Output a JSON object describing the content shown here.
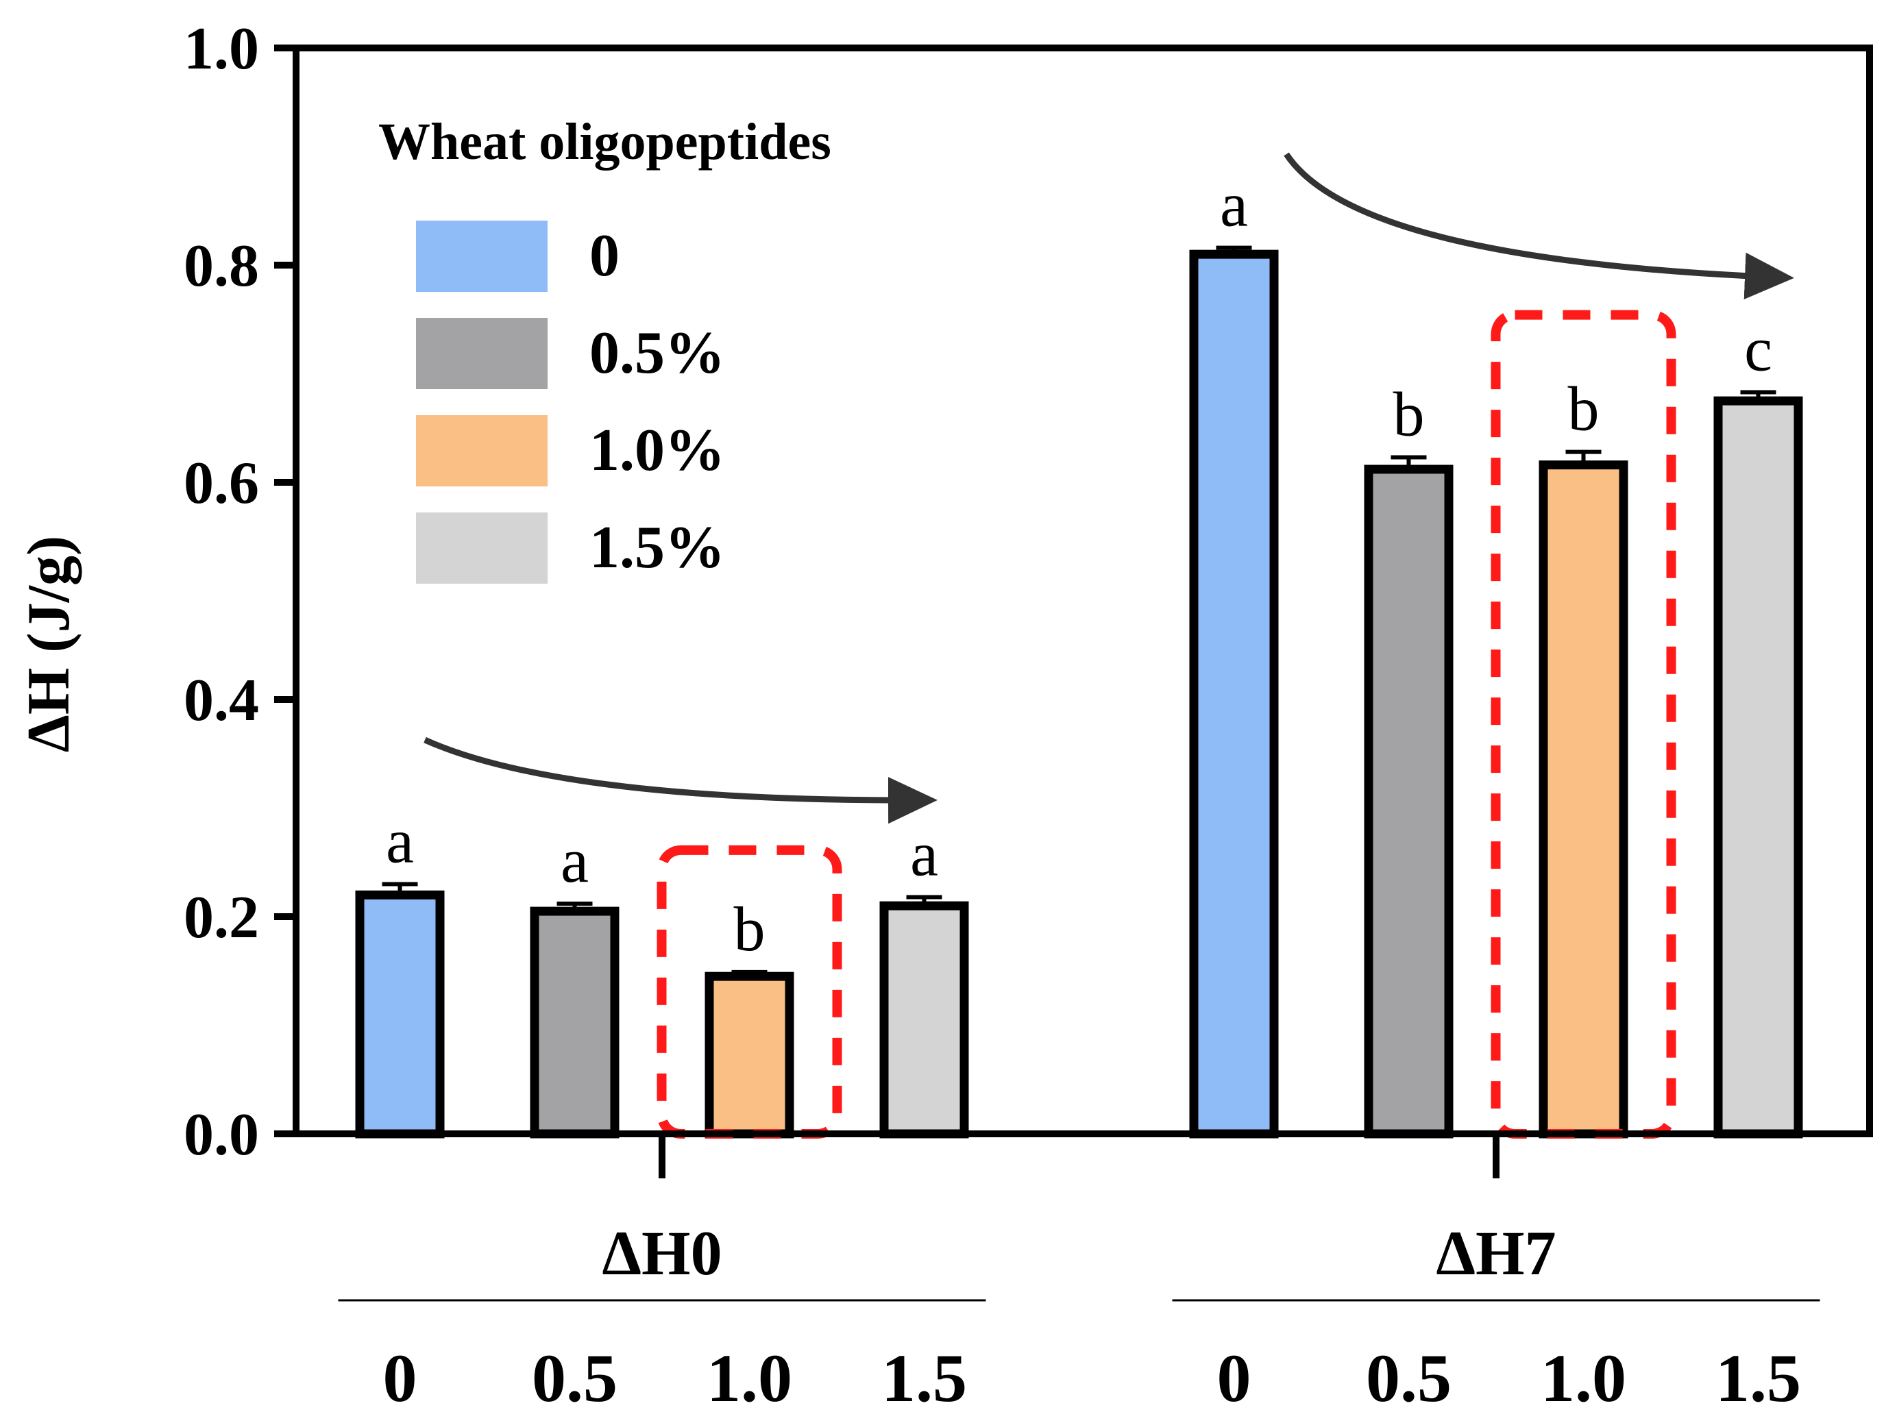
{
  "chart_data": {
    "type": "bar",
    "title": "",
    "xlabel": "",
    "ylabel": "ΔH (J/g)",
    "ylim": [
      0,
      1.0
    ],
    "yticks": [
      "0.0",
      "0.2",
      "0.4",
      "0.6",
      "0.8",
      "1.0"
    ],
    "grid": false,
    "legend": {
      "title": "Wheat oligopeptides",
      "position": "top-left",
      "entries": [
        {
          "label": "0",
          "color": "#8fbcf6"
        },
        {
          "label": "0.5%",
          "color": "#a3a3a6"
        },
        {
          "label": "1.0%",
          "color": "#f9bf85"
        },
        {
          "label": "1.5%",
          "color": "#d4d4d4"
        }
      ]
    },
    "groups": [
      {
        "label": "ΔH0",
        "categories": [
          "0",
          "0.5",
          "1.0",
          "1.5"
        ],
        "values": [
          0.22,
          0.205,
          0.145,
          0.21
        ],
        "errors": [
          0.01,
          0.007,
          0.004,
          0.008
        ],
        "significance": [
          "a",
          "a",
          "b",
          "a"
        ],
        "highlighted_index": 2
      },
      {
        "label": "ΔH7",
        "categories": [
          "0",
          "0.5",
          "1.0",
          "1.5"
        ],
        "values": [
          0.81,
          0.612,
          0.616,
          0.675
        ],
        "errors": [
          0.006,
          0.011,
          0.012,
          0.008
        ],
        "significance": [
          "a",
          "b",
          "b",
          "c"
        ],
        "highlighted_index": 2
      }
    ],
    "series_colors": [
      "#8fbcf6",
      "#a3a3a6",
      "#f9bf85",
      "#d4d4d4"
    ],
    "annotations": [
      "decreasing-trend-arrow",
      "highlight-box-1.0%"
    ]
  }
}
